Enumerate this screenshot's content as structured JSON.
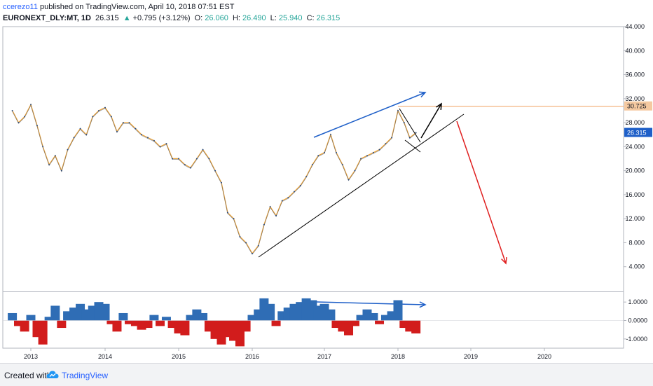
{
  "header": {
    "author": "ccerezo11",
    "published_text": "published on TradingView.com, April 10, 2018 07:51 EST",
    "symbol": "EURONEXT_DLY:MT, 1D",
    "last": "26.315",
    "change_arrow": "▲",
    "change": "+0.795 (+3.12%)",
    "open_label": "O:",
    "open": "26.060",
    "high_label": "H:",
    "high": "26.490",
    "low_label": "L:",
    "low": "25.940",
    "close_label": "C:",
    "close": "26.315"
  },
  "footer": {
    "created_with": "Created with",
    "brand": "TradingView",
    "logo_icon": "tradingview-cloud-icon"
  },
  "colors": {
    "price_line": "#e8a13a",
    "price_accent": "#2a4a7a",
    "trend_blue": "#1e5fc8",
    "trend_red": "#e02020",
    "hist_up": "#2f6db5",
    "hist_down": "#d21c1c",
    "resistance": "#f0a060",
    "last_label_bg": "#1e5fc8",
    "resistance_label_bg": "#f5c9a0"
  },
  "chart_data": [
    {
      "type": "line",
      "x": [
        "2012-10-01",
        "2012-11-01",
        "2012-12-01",
        "2013-01-01",
        "2013-02-01",
        "2013-03-01",
        "2013-04-01",
        "2013-05-01",
        "2013-06-01",
        "2013-07-01",
        "2013-08-01",
        "2013-09-01",
        "2013-10-01",
        "2013-11-01",
        "2013-12-01",
        "2014-01-01",
        "2014-02-01",
        "2014-03-01",
        "2014-04-01",
        "2014-05-01",
        "2014-06-01",
        "2014-07-01",
        "2014-08-01",
        "2014-09-01",
        "2014-10-01",
        "2014-11-01",
        "2014-12-01",
        "2015-01-01",
        "2015-02-01",
        "2015-03-01",
        "2015-04-01",
        "2015-05-01",
        "2015-06-01",
        "2015-07-01",
        "2015-08-01",
        "2015-09-01",
        "2015-10-01",
        "2015-11-01",
        "2015-12-01",
        "2016-01-01",
        "2016-02-01",
        "2016-03-01",
        "2016-04-01",
        "2016-05-01",
        "2016-06-01",
        "2016-07-01",
        "2016-08-01",
        "2016-09-01",
        "2016-10-01",
        "2016-11-01",
        "2016-12-01",
        "2017-01-01",
        "2017-02-01",
        "2017-03-01",
        "2017-04-01",
        "2017-05-01",
        "2017-06-01",
        "2017-07-01",
        "2017-08-01",
        "2017-09-01",
        "2017-10-01",
        "2017-11-01",
        "2017-12-01",
        "2018-01-01",
        "2018-02-01",
        "2018-03-01",
        "2018-04-01"
      ],
      "values": [
        30,
        28,
        29,
        31,
        27.5,
        24,
        21,
        22.5,
        20,
        23.5,
        25.5,
        27,
        26,
        29,
        30,
        30.5,
        29,
        26.5,
        28,
        28,
        27,
        26,
        25.5,
        25,
        24,
        24.5,
        22,
        22,
        21,
        20.5,
        22,
        23.5,
        22,
        20,
        18,
        13,
        12,
        9,
        8,
        6.2,
        7.5,
        11,
        14,
        12.5,
        15,
        15.5,
        16.5,
        17.5,
        19,
        21,
        22.5,
        23,
        26,
        23,
        21,
        18.5,
        20,
        22,
        22.5,
        23,
        23.5,
        24.5,
        25.5,
        30,
        28,
        25.5,
        26.315
      ],
      "ylim": [
        0,
        44
      ],
      "yticks": [
        4,
        8,
        12,
        16,
        20,
        24,
        28,
        32,
        36,
        40,
        44
      ],
      "ytick_labels": [
        "4.000",
        "8.000",
        "12.000",
        "16.000",
        "20.000",
        "24.000",
        "28.000",
        "32.000",
        "36.000",
        "40.000",
        "44.000"
      ],
      "xtick_labels": [
        "2013",
        "2014",
        "2015",
        "2016",
        "2017",
        "2018",
        "2019",
        "2020"
      ],
      "last_value_label": "26.315",
      "resistance": {
        "value": 30.725,
        "label": "30.725"
      }
    },
    {
      "type": "bar",
      "x": [
        "2012-10-01",
        "2012-11-01",
        "2012-12-01",
        "2013-01-01",
        "2013-02-01",
        "2013-03-01",
        "2013-04-01",
        "2013-05-01",
        "2013-06-01",
        "2013-07-01",
        "2013-08-01",
        "2013-09-01",
        "2013-10-01",
        "2013-11-01",
        "2013-12-01",
        "2014-01-01",
        "2014-02-01",
        "2014-03-01",
        "2014-04-01",
        "2014-05-01",
        "2014-06-01",
        "2014-07-01",
        "2014-08-01",
        "2014-09-01",
        "2014-10-01",
        "2014-11-01",
        "2014-12-01",
        "2015-01-01",
        "2015-02-01",
        "2015-03-01",
        "2015-04-01",
        "2015-05-01",
        "2015-06-01",
        "2015-07-01",
        "2015-08-01",
        "2015-09-01",
        "2015-10-01",
        "2015-11-01",
        "2015-12-01",
        "2016-01-01",
        "2016-02-01",
        "2016-03-01",
        "2016-04-01",
        "2016-05-01",
        "2016-06-01",
        "2016-07-01",
        "2016-08-01",
        "2016-09-01",
        "2016-10-01",
        "2016-11-01",
        "2016-12-01",
        "2017-01-01",
        "2017-02-01",
        "2017-03-01",
        "2017-04-01",
        "2017-05-01",
        "2017-06-01",
        "2017-07-01",
        "2017-08-01",
        "2017-09-01",
        "2017-10-01",
        "2017-11-01",
        "2017-12-01",
        "2018-01-01",
        "2018-02-01",
        "2018-03-01",
        "2018-04-01"
      ],
      "values": [
        0.4,
        -0.3,
        -0.6,
        0.3,
        -0.9,
        -1.3,
        0.2,
        0.8,
        -0.4,
        0.5,
        0.7,
        0.9,
        0.6,
        0.8,
        1.0,
        0.9,
        -0.2,
        -0.6,
        0.4,
        -0.2,
        -0.3,
        -0.5,
        -0.4,
        0.3,
        -0.3,
        0.2,
        -0.4,
        -0.7,
        -0.8,
        0.3,
        0.6,
        0.4,
        -0.6,
        -1.0,
        -1.3,
        -0.9,
        -1.1,
        -1.4,
        -0.6,
        0.3,
        0.6,
        1.2,
        0.9,
        -0.3,
        0.5,
        0.7,
        0.9,
        1.0,
        1.2,
        1.1,
        0.8,
        0.9,
        0.6,
        -0.4,
        -0.6,
        -0.8,
        -0.3,
        0.3,
        0.6,
        0.4,
        -0.2,
        0.3,
        0.5,
        1.1,
        -0.4,
        -0.6,
        -0.7
      ],
      "ylim": [
        -1.5,
        1.5
      ],
      "yticks": [
        -1,
        0,
        1
      ],
      "ytick_labels": [
        "-1.0000",
        "0.0000",
        "1.0000"
      ]
    }
  ]
}
